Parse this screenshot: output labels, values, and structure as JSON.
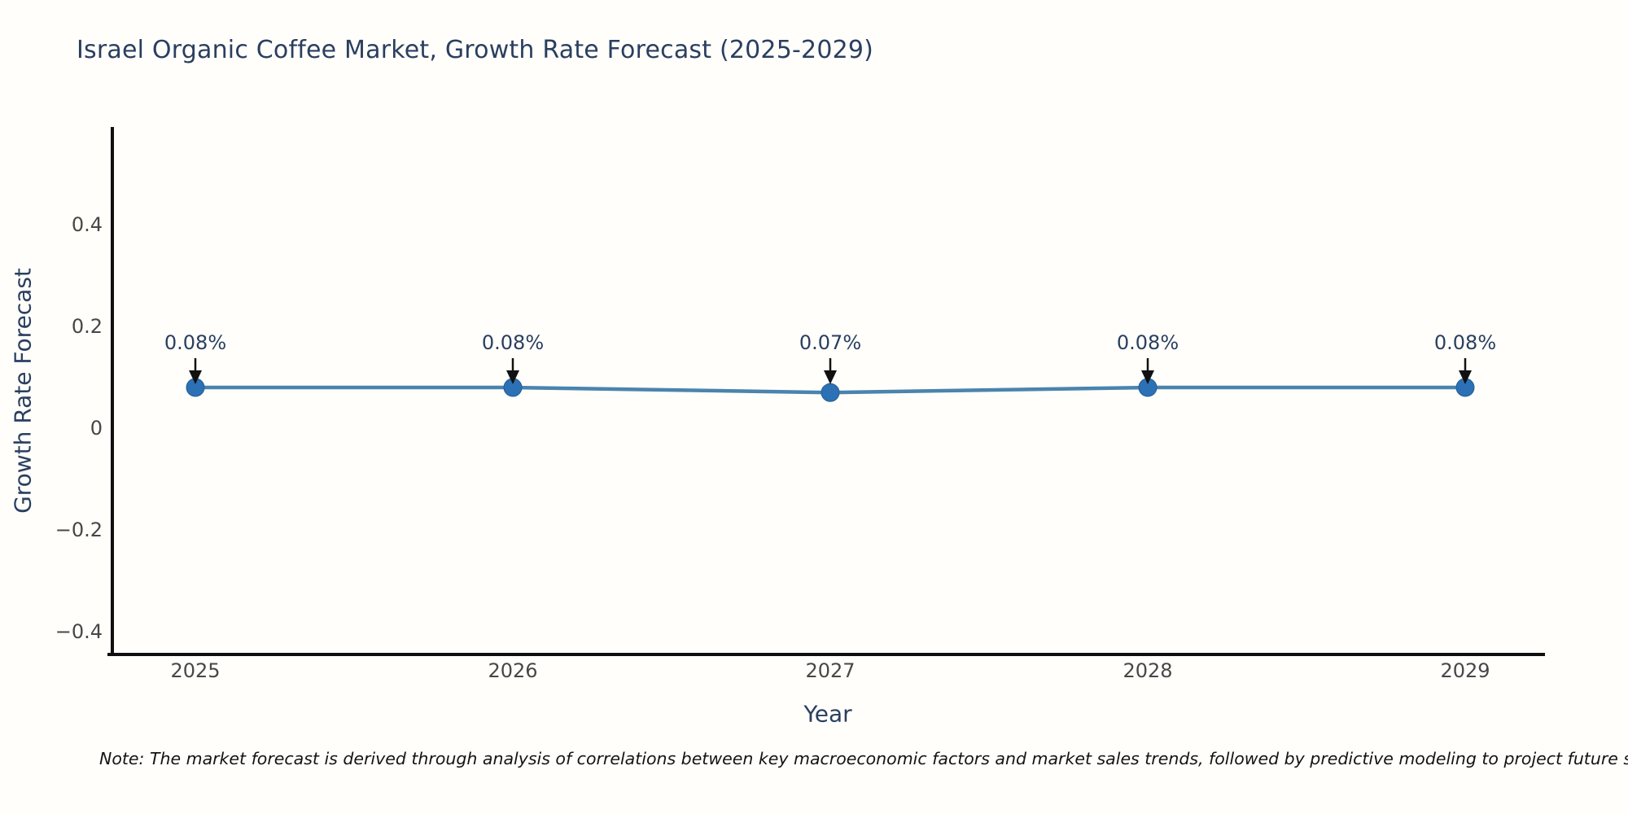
{
  "figure": {
    "title": "Israel Organic Coffee Market, Growth Rate Forecast (2025-2029)",
    "note": "Note: The market forecast is derived through analysis of correlations between key macroeconomic factors and market sales trends, followed by predictive modeling to project future sa"
  },
  "chart_data": {
    "type": "line",
    "title": "Israel Organic Coffee Market, Growth Rate Forecast (2025-2029)",
    "xlabel": "Year",
    "ylabel": "Growth Rate Forecast",
    "categories": [
      "2025",
      "2026",
      "2027",
      "2028",
      "2029"
    ],
    "series": [
      {
        "name": "Growth Rate Forecast",
        "values": [
          0.08,
          0.08,
          0.07,
          0.08,
          0.08
        ],
        "point_labels": [
          "0.08%",
          "0.08%",
          "0.07%",
          "0.08%",
          "0.08%"
        ]
      }
    ],
    "yticks": [
      0.4,
      0.2,
      0,
      -0.2,
      -0.4
    ],
    "ytick_labels": [
      "0.4",
      "0.2",
      "0",
      "−0.2",
      "−0.4"
    ],
    "ylim": [
      -0.45,
      0.59
    ],
    "grid": false,
    "legend": "none",
    "annotation_style": "value labels with downward arrows to markers",
    "colors": {
      "line": "#4a84ae",
      "marker": "#2c70b5",
      "marker_edge": "#245e92",
      "arrow": "#111111",
      "axis": "#0f0f0f",
      "heading_text": "#2a3f5f",
      "tick_text": "#474747",
      "note_text": "#141414",
      "background": "#fffefb"
    }
  }
}
